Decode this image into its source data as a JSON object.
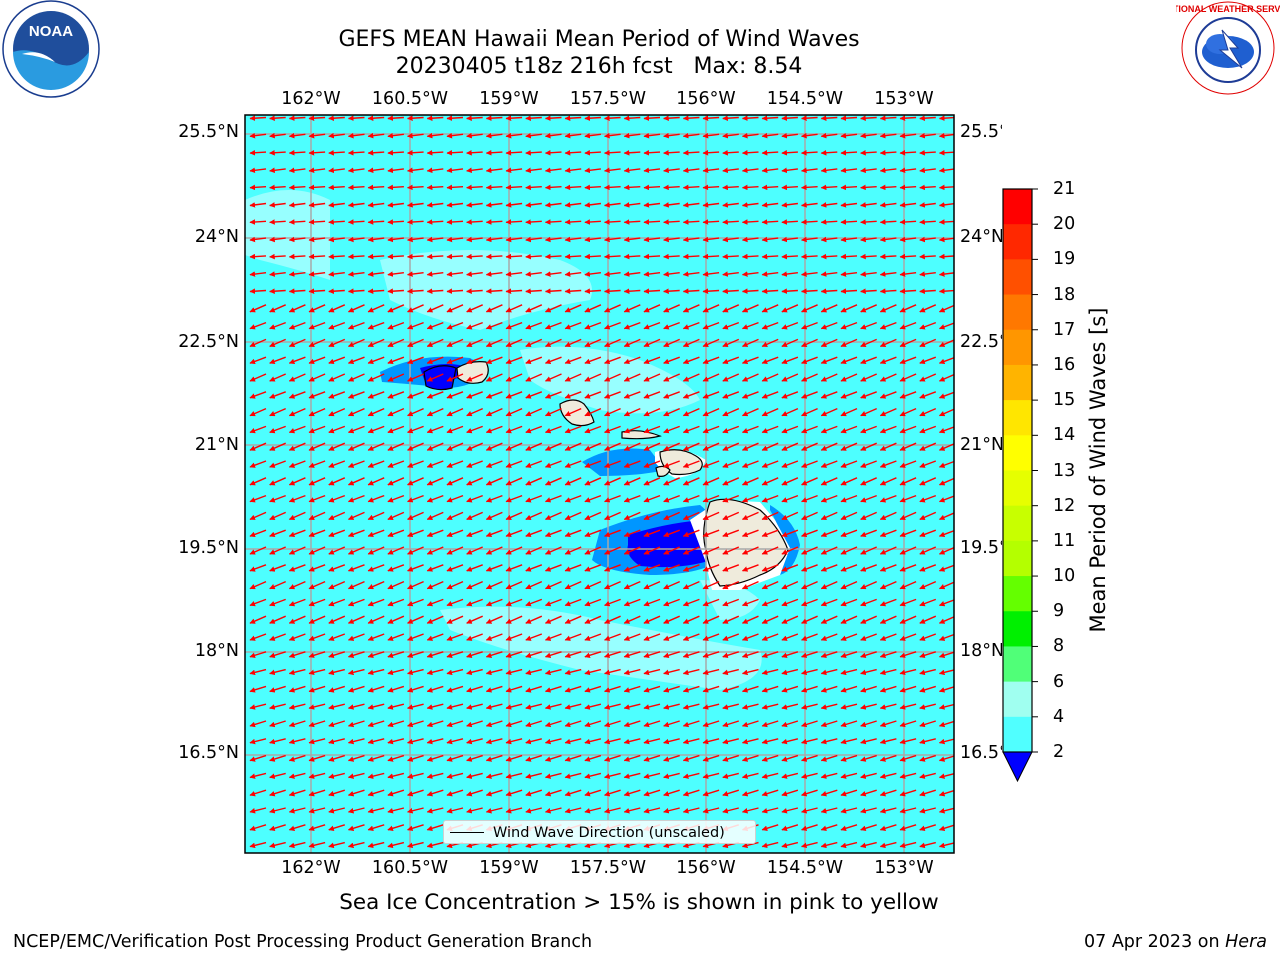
{
  "header": {
    "title_line1": "GEFS MEAN Hawaii Mean Period of Wind Waves",
    "title_line2": "20230405 t18z 216h fcst   Max: 8.54"
  },
  "map": {
    "lon_ticks": [
      "162°W",
      "160.5°W",
      "159°W",
      "157.5°W",
      "156°W",
      "154.5°W",
      "153°W"
    ],
    "lat_ticks": [
      "25.5°N",
      "24°N",
      "22.5°N",
      "21°N",
      "19.5°N",
      "18°N",
      "16.5°N"
    ],
    "ocean_color": "#4dffff",
    "arrow_color": "#ff0000",
    "land_color": "#efebdc",
    "legend_label": "Wind Wave Direction (unscaled)"
  },
  "colorbar": {
    "label": "Mean Period of Wind Waves [s]",
    "ticks": [
      "21",
      "20",
      "19",
      "18",
      "17",
      "16",
      "15",
      "14",
      "13",
      "12",
      "11",
      "10",
      "9",
      "8",
      "6",
      "4",
      "2"
    ],
    "colors": [
      "#ff0000",
      "#ff2800",
      "#ff5000",
      "#ff7800",
      "#ff8c00",
      "#ffb400",
      "#ffe600",
      "#ffff00",
      "#e6ff00",
      "#bfff00",
      "#c8ff00",
      "#64ff00",
      "#00f000",
      "#00e600",
      "#50ff78",
      "#a0ffe6",
      "#50ffff",
      "#00ffff",
      "#0096ff",
      "#0000ff"
    ],
    "extend_color": "#0000ff"
  },
  "footnote": "Sea Ice Concentration > 15% is shown in pink to yellow",
  "footer": {
    "left": "NCEP/EMC/Verification Post Processing Product Generation Branch",
    "right_date": "07 Apr 2023 on ",
    "right_host": "Hera"
  },
  "logos": {
    "left": "NOAA",
    "right": "NATIONAL WEATHER SERVICE"
  }
}
